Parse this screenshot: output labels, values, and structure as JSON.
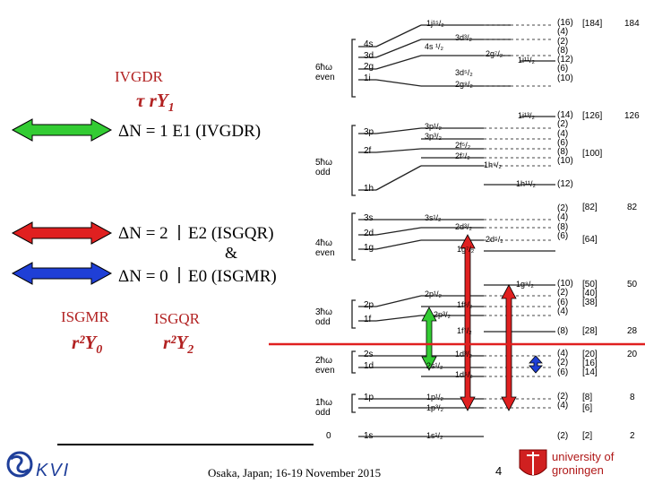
{
  "left_panel": {
    "ivgdr_title": "IVGDR",
    "ivgdr_operator": "τ rY",
    "ivgdr_operator_sub": "1",
    "dn1_label": "ΔN = 1  E1 (IVGDR)",
    "dn2_label": "ΔN = 2",
    "e2_label": "E2 (ISGQR)",
    "amp": "&",
    "dn0_label": "ΔN = 0",
    "e0_label": "E0 (ISGMR)",
    "isgmr_title": "ISGMR",
    "isgmr_operator": "r²Y",
    "isgmr_operator_sub": "0",
    "isgqr_title": "ISGQR",
    "isgqr_operator": "r²Y",
    "isgqr_operator_sub": "2",
    "arrow_colors": {
      "green": "#33cc33",
      "red": "#e02020",
      "blue": "#1f3fd6",
      "separator": "#e02020"
    }
  },
  "shell_diagram": {
    "shells": [
      {
        "hw": "6ħω",
        "parity": "even"
      },
      {
        "hw": "5ħω",
        "parity": "odd"
      },
      {
        "hw": "4ħω",
        "parity": "even"
      },
      {
        "hw": "3ħω",
        "parity": "odd"
      },
      {
        "hw": "2ħω",
        "parity": "even"
      },
      {
        "hw": "1ħω",
        "parity": "odd"
      },
      {
        "hw": "0",
        "parity": ""
      }
    ],
    "n_levels": [
      "4s",
      "3d",
      "2g",
      "1i",
      "3p",
      "2f",
      "1h",
      "3s",
      "2d",
      "1g",
      "2p",
      "1f",
      "2s",
      "1d",
      "1p",
      "1s"
    ],
    "split_levels": [
      "1j¹⁵/₂",
      "3d³/₂",
      "4s ¹/₂",
      "2g⁷/₂",
      "1i¹¹/₂",
      "3d⁵/₂",
      "2g⁹/₂",
      "1i¹³/₂",
      "3p¹/₂",
      "3p³/₂",
      "2f⁵/₂",
      "2f⁷/₂",
      "1h⁹/₂",
      "1h¹¹/₂",
      "3s¹/₂",
      "2d³/₂",
      "1g⁷/₂",
      "2d⁵/₂",
      "1g⁹/₂",
      "2p¹/₂",
      "1f⁵/₂",
      "2p³/₂",
      "1f⁷/₂",
      "1d³/₂",
      "2s¹/₂",
      "1d⁵/₂",
      "1p¹/₂",
      "1p³/₂",
      "1s¹/₂"
    ],
    "degeneracies": [
      "(16)",
      "(4)",
      "(2)",
      "(8)",
      "(12)",
      "(6)",
      "(10)",
      "(14)",
      "(2)",
      "(4)",
      "(6)",
      "(8)",
      "(10)",
      "(12)",
      "(2)",
      "(4)",
      "(8)",
      "(6)",
      "(10)",
      "(2)",
      "(6)",
      "(4)",
      "(8)",
      "(4)",
      "(2)",
      "(6)",
      "(2)",
      "(4)",
      "(2)"
    ],
    "cumulative": [
      "[184]",
      "[126]",
      "[100]",
      "[82]",
      "[64]",
      "[50]",
      "[40]",
      "[38]",
      "[28]",
      "[20]",
      "[16]",
      "[14]",
      "[8]",
      "[6]",
      "[2]"
    ],
    "magic_numbers": [
      "184",
      "126",
      "82",
      "50",
      "28",
      "20",
      "8",
      "2"
    ]
  },
  "footer": {
    "logo_left": "KVI",
    "conference": "Osaka, Japan; 16-19 November 2015",
    "page_number": "4",
    "logo_right_line1": "university of",
    "logo_right_line2": "groningen"
  }
}
